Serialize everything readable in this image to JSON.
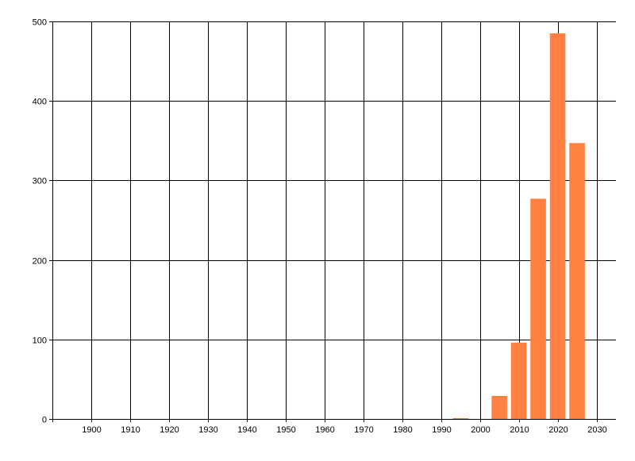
{
  "chart_data": {
    "type": "bar",
    "title": "",
    "xlabel": "",
    "ylabel": "",
    "x": [
      1995,
      2005,
      2010,
      2015,
      2020,
      2025
    ],
    "values": [
      1,
      29,
      96,
      277,
      485,
      347
    ],
    "bar_width_years": 4,
    "xlim": [
      1890,
      2035
    ],
    "ylim": [
      0,
      500
    ],
    "xticks": [
      1900,
      1910,
      1920,
      1930,
      1940,
      1950,
      1960,
      1970,
      1980,
      1990,
      2000,
      2010,
      2020,
      2030
    ],
    "yticks": [
      0,
      100,
      200,
      300,
      400,
      500
    ],
    "grid": true,
    "legend": "none",
    "bar_color": "#ff8040",
    "grid_color": "#000000"
  }
}
